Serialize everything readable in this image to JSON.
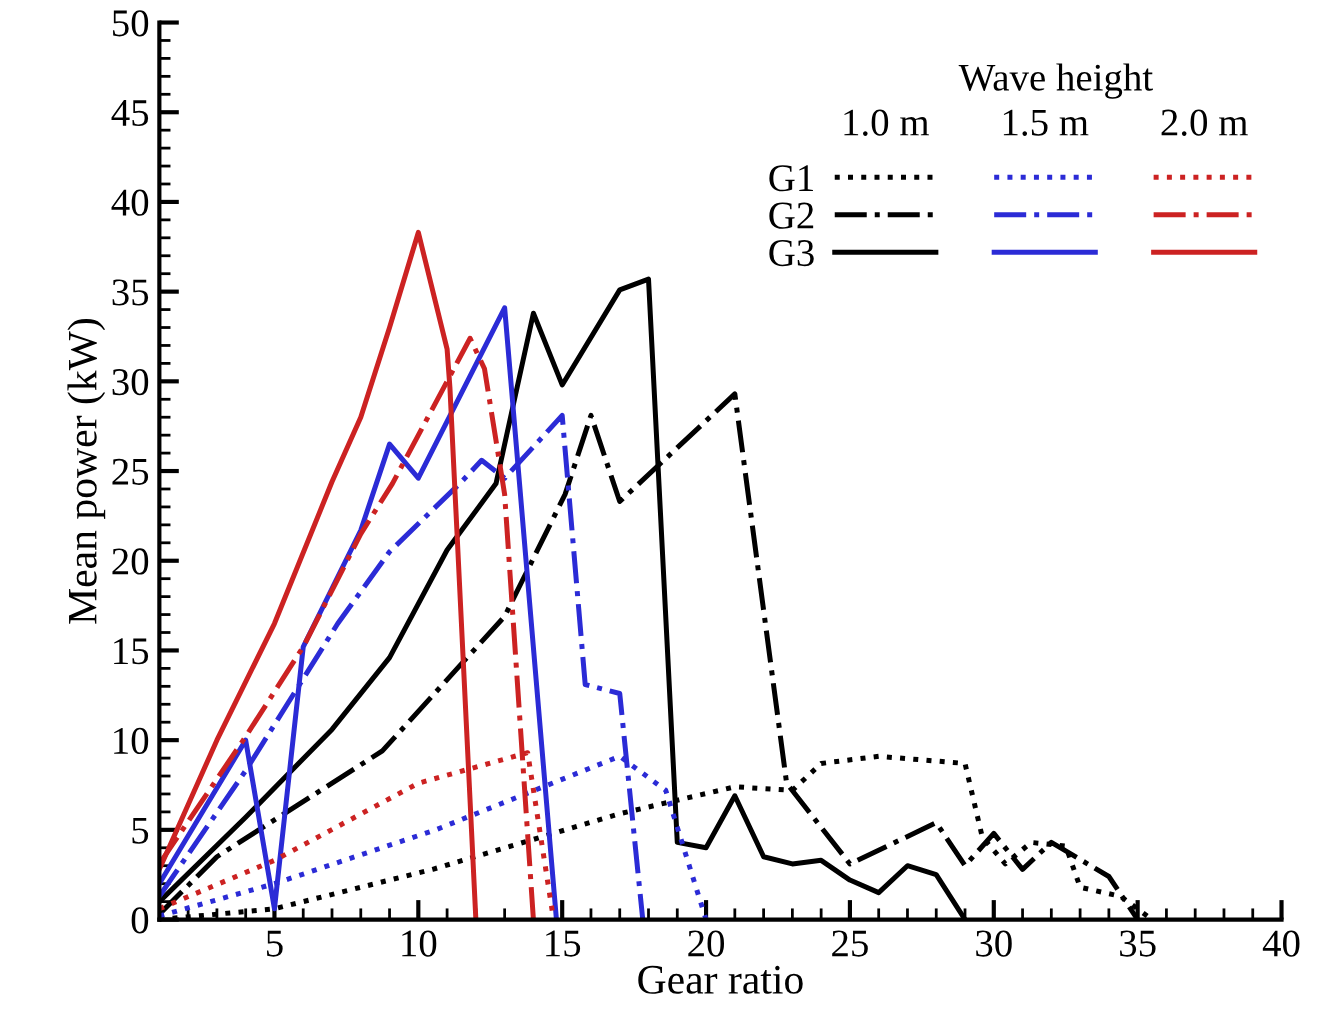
{
  "chart_data": {
    "type": "line",
    "xlabel": "Gear ratio",
    "ylabel": "Mean power (kW)",
    "legend_title": "Wave height",
    "annotations": [
      "1.0 m",
      "1.5 m",
      "2.0 m"
    ],
    "xlim": [
      1,
      40
    ],
    "xticks": [
      5,
      10,
      15,
      20,
      25,
      30,
      35,
      40
    ],
    "ylim": [
      0,
      50
    ],
    "yticks": [
      0,
      5,
      10,
      15,
      20,
      25,
      30,
      35,
      40,
      45,
      50
    ],
    "grid": false,
    "legend": "top right",
    "marker": "none",
    "series": [
      {
        "name": "G1",
        "color": "#000000",
        "line_style": "dotted",
        "x": [
          1,
          5,
          10.5,
          17,
          21,
          23,
          24,
          26,
          29,
          29.6,
          30.4,
          31.3,
          32.5,
          33,
          34.4,
          35.5
        ],
        "values": [
          0,
          0.6,
          2.8,
          5.9,
          7.4,
          7.2,
          8.7,
          9.1,
          8.7,
          4.6,
          3.1,
          4.3,
          4.1,
          1.8,
          1.3,
          0
        ]
      },
      {
        "name": "G2",
        "color": "#000000",
        "line_style": "dashdot",
        "x": [
          1,
          3,
          8.75,
          13,
          15.1,
          16,
          17,
          21,
          22.8,
          25,
          28,
          29,
          30,
          31,
          32,
          34,
          35
        ],
        "values": [
          0.3,
          3.5,
          9.4,
          16.9,
          23.7,
          28.1,
          23.3,
          29.3,
          7.6,
          3.1,
          5.4,
          3.0,
          4.8,
          2.8,
          4.3,
          2.4,
          0
        ]
      },
      {
        "name": "G3",
        "color": "#000000",
        "line_style": "solid",
        "x": [
          1,
          4,
          7,
          9,
          11,
          12.7,
          14,
          15,
          17,
          18,
          19,
          20,
          21,
          22,
          23,
          24,
          25,
          26,
          27,
          28,
          29
        ],
        "values": [
          1,
          5.7,
          10.6,
          14.6,
          20.6,
          24.3,
          33.8,
          29.8,
          35.1,
          35.7,
          4.3,
          4.0,
          6.9,
          3.5,
          3.1,
          3.3,
          2.2,
          1.5,
          3.0,
          2.5,
          0
        ]
      },
      {
        "color": "#2b2bd6",
        "line_style": "dotted",
        "x": [
          1,
          5,
          10.6,
          17,
          18.6,
          20
        ],
        "values": [
          0.2,
          2,
          5,
          9.1,
          7.2,
          0
        ]
      },
      {
        "color": "#2b2bd6",
        "line_style": "dashdot",
        "x": [
          1,
          4,
          7.2,
          9,
          11.5,
          12.2,
          13,
          15,
          15.8,
          17,
          17.8
        ],
        "values": [
          1.3,
          8.3,
          16.5,
          20.5,
          24.4,
          25.6,
          24.6,
          28.1,
          13.1,
          12.6,
          0
        ]
      },
      {
        "color": "#2b2bd6",
        "line_style": "solid",
        "x": [
          1,
          4,
          5,
          6,
          8,
          9,
          10,
          13,
          14.8
        ],
        "values": [
          2,
          10,
          0.6,
          15.2,
          21.7,
          26.5,
          24.6,
          34.1,
          0
        ]
      },
      {
        "color": "#cc2222",
        "line_style": "dotted",
        "x": [
          1,
          5,
          10,
          13.8,
          14.7
        ],
        "values": [
          0.6,
          3.3,
          7.6,
          9.3,
          0
        ]
      },
      {
        "color": "#cc2222",
        "line_style": "dashdot",
        "x": [
          1,
          4,
          6,
          8,
          9.1,
          11.8,
          12.3,
          13,
          14
        ],
        "values": [
          3.1,
          10.2,
          15.2,
          21.5,
          24.3,
          32.4,
          30.7,
          23.7,
          0
        ]
      },
      {
        "color": "#cc2222",
        "line_style": "solid",
        "x": [
          1,
          3,
          5,
          7,
          8,
          9,
          10,
          11,
          11.1,
          12
        ],
        "values": [
          2.8,
          10,
          16.5,
          24.4,
          28,
          33,
          38.3,
          31.8,
          29.6,
          0
        ]
      }
    ]
  }
}
